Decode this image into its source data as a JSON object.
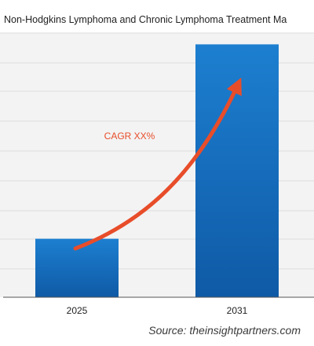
{
  "chart_data": {
    "type": "bar",
    "title": "Non-Hodgkins Lymphoma and Chronic Lymphoma Treatment Ma",
    "categories": [
      "2025",
      "2031"
    ],
    "values": [
      15.5,
      67
    ],
    "ylim": [
      0,
      70
    ],
    "grid": true,
    "annotation": "CAGR XX%",
    "bar_color": "#1a73c2",
    "accent_color": "#e84d2a",
    "source": "Source: theinsightpartners.com"
  }
}
